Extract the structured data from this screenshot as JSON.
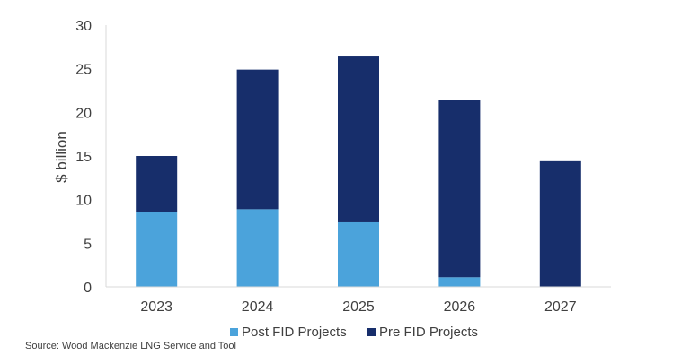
{
  "chart_data": {
    "type": "bar",
    "stacked": true,
    "categories": [
      "2023",
      "2024",
      "2025",
      "2026",
      "2027"
    ],
    "series": [
      {
        "name": "Post FID Projects",
        "color": "#4BA3DB",
        "values": [
          8.6,
          8.9,
          7.4,
          1.1,
          0
        ]
      },
      {
        "name": "Pre FID Projects",
        "color": "#172E6B",
        "values": [
          6.4,
          16.0,
          19.0,
          20.3,
          14.4
        ]
      }
    ],
    "ylabel": "$ billion",
    "ylim": [
      0,
      30
    ],
    "yticks": [
      0,
      5,
      10,
      15,
      20,
      25,
      30
    ],
    "grid": false,
    "legend_position": "bottom"
  },
  "source": "Source: Wood Mackenzie LNG Service and Tool"
}
